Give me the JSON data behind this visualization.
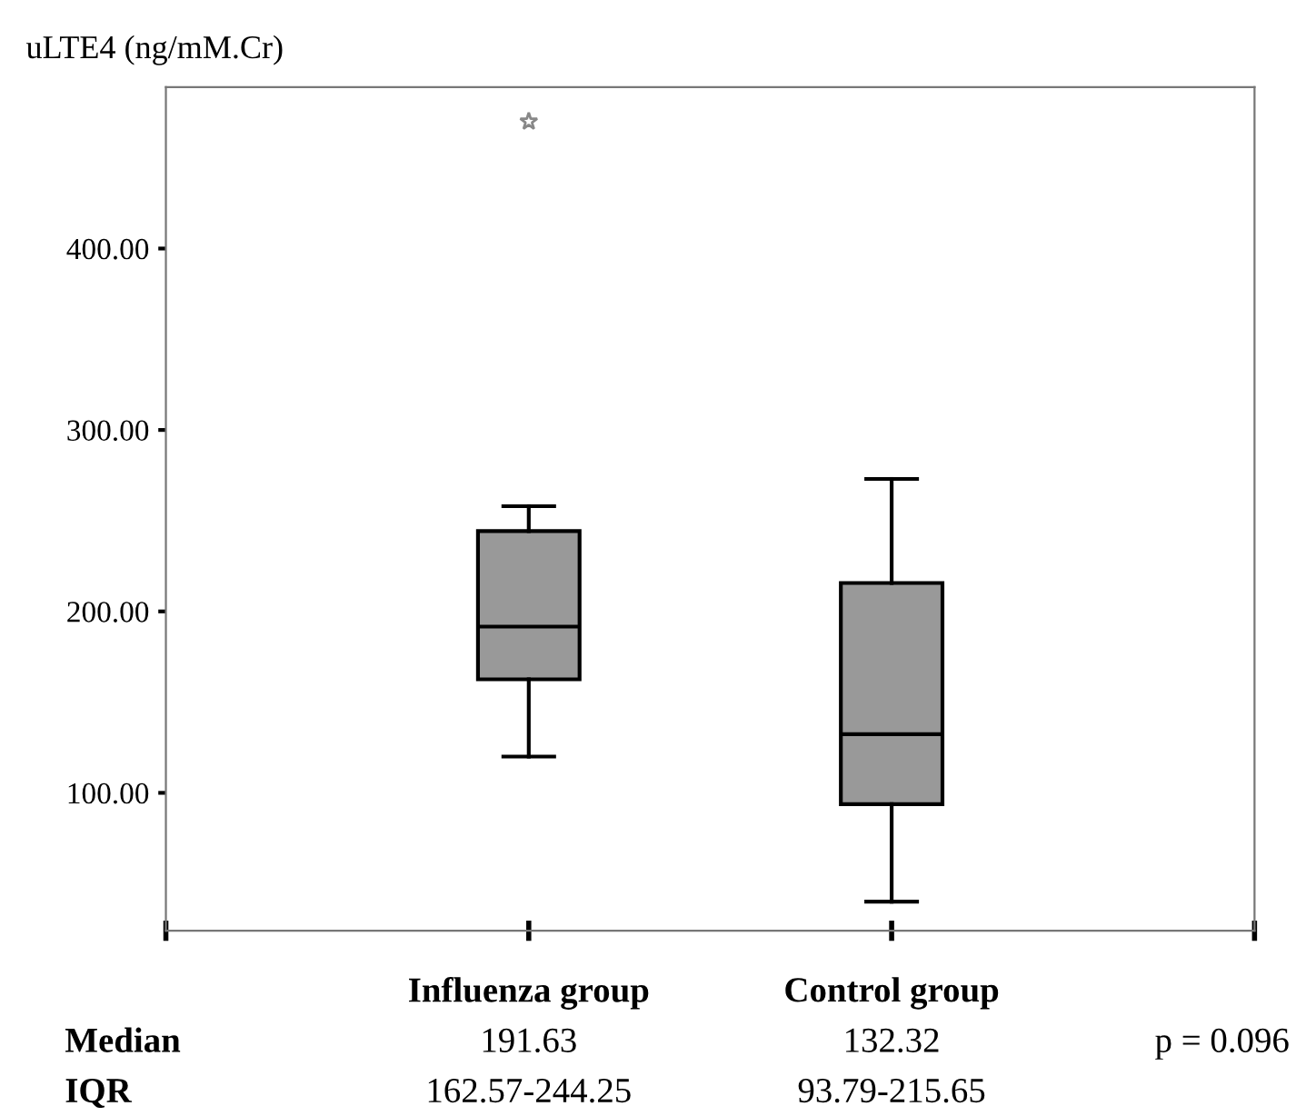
{
  "chart_data": {
    "type": "box",
    "ylabel": "uLTE4 (ng/mM.Cr)",
    "categories": [
      "Influenza group",
      "Control group"
    ],
    "color": "#999999",
    "boxes": [
      {
        "low": 120,
        "q1": 162.57,
        "median": 191.63,
        "q3": 244.25,
        "high": 258,
        "outliers": [
          470
        ]
      },
      {
        "low": 40,
        "q1": 93.79,
        "median": 132.32,
        "q3": 215.65,
        "high": 273
      }
    ],
    "ylim": [
      24,
      489
    ],
    "yticks": [
      {
        "value": 100,
        "label": "100.00"
      },
      {
        "value": 200,
        "label": "200.00"
      },
      {
        "value": 300,
        "label": "300.00"
      },
      {
        "value": 400,
        "label": "400.00"
      }
    ],
    "grid": false,
    "marker": "star",
    "annotations": [
      "Median",
      "191.63",
      "132.32",
      "p = 0.096",
      "IQR",
      "162.57-244.25",
      "93.79-215.65"
    ]
  }
}
